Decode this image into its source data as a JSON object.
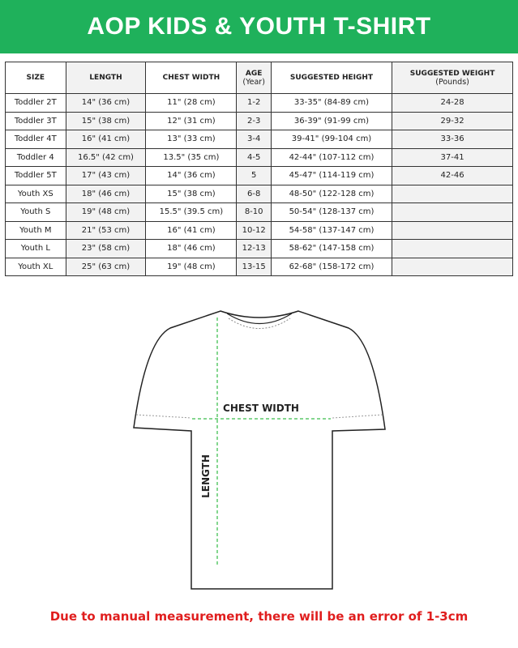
{
  "title": "AOP KIDS & YOUTH T-SHIRT",
  "headers": [
    {
      "label": "SIZE"
    },
    {
      "label": "LENGTH"
    },
    {
      "label": "CHEST WIDTH"
    },
    {
      "label": "AGE",
      "sub": "(Year)"
    },
    {
      "label": "SUGGESTED HEIGHT"
    },
    {
      "label": "SUGGESTED WEIGHT",
      "sub": "(Pounds)"
    }
  ],
  "rows": [
    [
      "Toddler 2T",
      "14\" (36 cm)",
      "11\" (28 cm)",
      "1-2",
      "33-35\" (84-89 cm)",
      "24-28"
    ],
    [
      "Toddler 3T",
      "15\" (38 cm)",
      "12\" (31 cm)",
      "2-3",
      "36-39\" (91-99 cm)",
      "29-32"
    ],
    [
      "Toddler 4T",
      "16\" (41 cm)",
      "13\" (33 cm)",
      "3-4",
      "39-41\" (99-104 cm)",
      "33-36"
    ],
    [
      "Toddler 4",
      "16.5\" (42 cm)",
      "13.5\" (35 cm)",
      "4-5",
      "42-44\" (107-112 cm)",
      "37-41"
    ],
    [
      "Toddler 5T",
      "17\" (43 cm)",
      "14\" (36 cm)",
      "5",
      "45-47\" (114-119 cm)",
      "42-46"
    ],
    [
      "Youth XS",
      "18\" (46 cm)",
      "15\" (38 cm)",
      "6-8",
      "48-50\" (122-128 cm)",
      ""
    ],
    [
      "Youth S",
      "19\" (48 cm)",
      "15.5\" (39.5 cm)",
      "8-10",
      "50-54\" (128-137 cm)",
      ""
    ],
    [
      "Youth M",
      "21\" (53 cm)",
      "16\" (41 cm)",
      "10-12",
      "54-58\" (137-147 cm)",
      ""
    ],
    [
      "Youth L",
      "23\" (58 cm)",
      "18\" (46 cm)",
      "12-13",
      "58-62\" (147-158 cm)",
      ""
    ],
    [
      "Youth XL",
      "25\" (63 cm)",
      "19\" (48 cm)",
      "13-15",
      "62-68\" (158-172 cm)",
      ""
    ]
  ],
  "diagram": {
    "chest_label": "CHEST WIDTH",
    "length_label": "LENGTH",
    "guide_color": "#5cc96a"
  },
  "note": "Due to manual measurement, there will be an error of 1-3cm",
  "colors": {
    "header": "#1fb15b",
    "note": "#e01e1e"
  }
}
